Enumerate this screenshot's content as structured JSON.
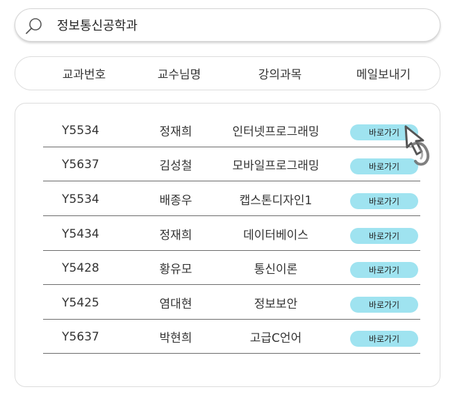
{
  "search": {
    "value": "정보통신공학과"
  },
  "header": {
    "columns": [
      "교과번호",
      "교수님명",
      "강의과목",
      "메일보내기"
    ]
  },
  "rows": [
    {
      "code": "Y5534",
      "professor": "정재희",
      "course": "인터넷프로그래밍",
      "action": "바로가기"
    },
    {
      "code": "Y5637",
      "professor": "김성철",
      "course": "모바일프로그래밍",
      "action": "바로가기"
    },
    {
      "code": "Y5534",
      "professor": "배종우",
      "course": "캡스톤디자인1",
      "action": "바로가기"
    },
    {
      "code": "Y5434",
      "professor": "정재희",
      "course": "데이터베이스",
      "action": "바로가기"
    },
    {
      "code": "Y5428",
      "professor": "황유모",
      "course": "통신이론",
      "action": "바로가기"
    },
    {
      "code": "Y5425",
      "professor": "염대현",
      "course": "정보보안",
      "action": "바로가기"
    },
    {
      "code": "Y5637",
      "professor": "박현희",
      "course": "고급C언어",
      "action": "바로가기"
    }
  ],
  "colors": {
    "button": "#9fe3f0",
    "divider": "#6a6a6a",
    "border": "#dcdcdc"
  },
  "icons": {
    "search": "search-icon",
    "cursor": "hand-pointer-icon"
  }
}
